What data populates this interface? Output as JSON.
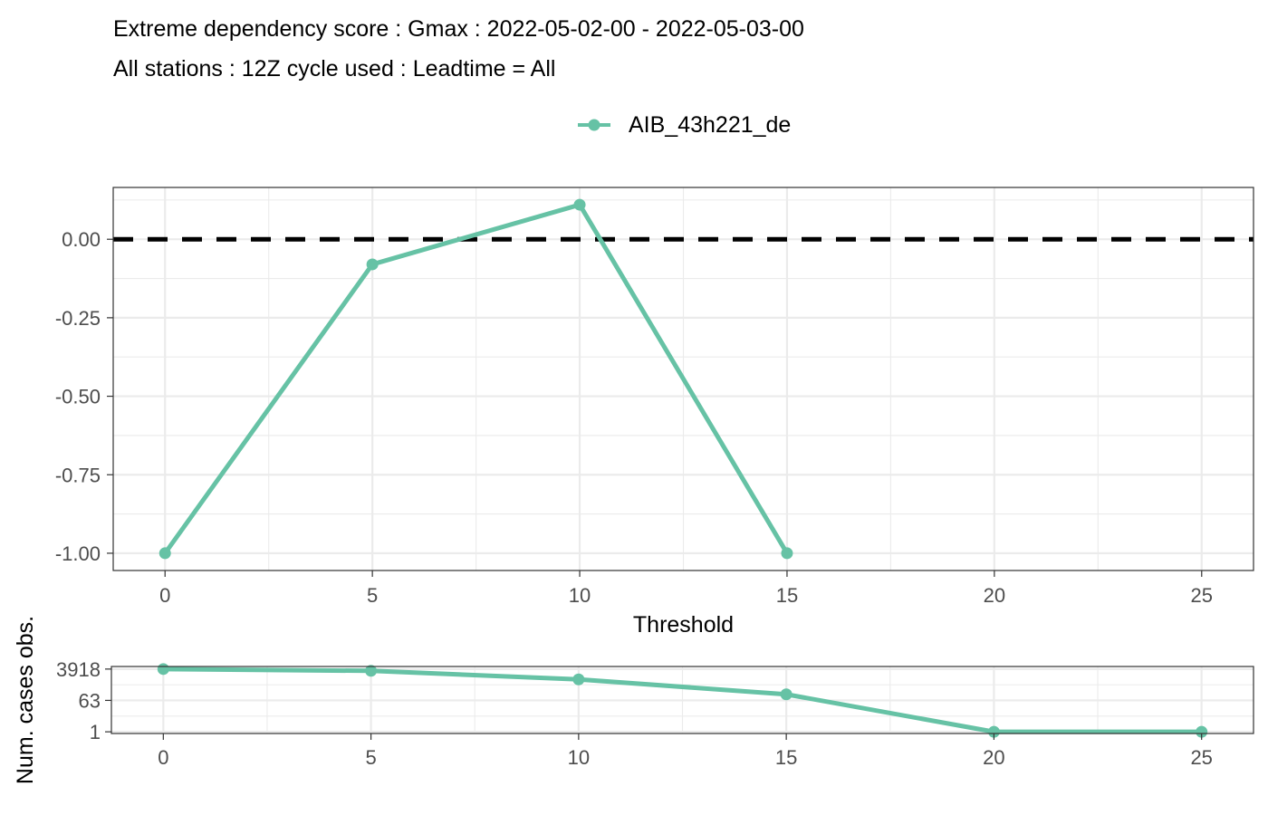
{
  "title": "Extreme dependency score : Gmax : 2022-05-02-00 - 2022-05-03-00",
  "subtitle": "All stations : 12Z cycle used : Leadtime = All",
  "colors": {
    "series": "#66c2a5",
    "reference_line": "#000000",
    "panel_border": "#333333",
    "grid": "#ebebeb"
  },
  "chart_data": [
    {
      "type": "line",
      "xlabel": "Threshold",
      "ylabel": "",
      "xlim": [
        -1.25,
        26.25
      ],
      "ylim": [
        -1.055,
        0.165
      ],
      "x_ticks": [
        0,
        5,
        10,
        15,
        20,
        25
      ],
      "y_ticks": [
        0.0,
        -0.25,
        -0.5,
        -0.75,
        -1.0
      ],
      "y_tick_labels": [
        "0.00",
        "-0.25",
        "-0.50",
        "-0.75",
        "-1.00"
      ],
      "reference_line": {
        "y": 0,
        "style": "dashed"
      },
      "grid": true,
      "legend_position": "top",
      "series": [
        {
          "name": "AIB_43h221_de",
          "x": [
            0,
            5,
            10,
            15
          ],
          "y": [
            -1.0,
            -0.08,
            0.11,
            -1.0
          ]
        }
      ]
    },
    {
      "type": "line",
      "xlabel": "",
      "ylabel": "Num. cases obs.",
      "xlim": [
        -1.25,
        26.25
      ],
      "scale": "log",
      "ylim": [
        0.8,
        5500
      ],
      "x_ticks": [
        0,
        5,
        10,
        15,
        20,
        25
      ],
      "y_ticks": [
        1,
        63,
        3918
      ],
      "y_tick_labels": [
        "1",
        "63",
        "3918"
      ],
      "grid": true,
      "series": [
        {
          "name": "AIB_43h221_de",
          "x": [
            0,
            5,
            10,
            15,
            20,
            25
          ],
          "y": [
            3918,
            3100,
            1000,
            140,
            1,
            1
          ]
        }
      ]
    }
  ]
}
